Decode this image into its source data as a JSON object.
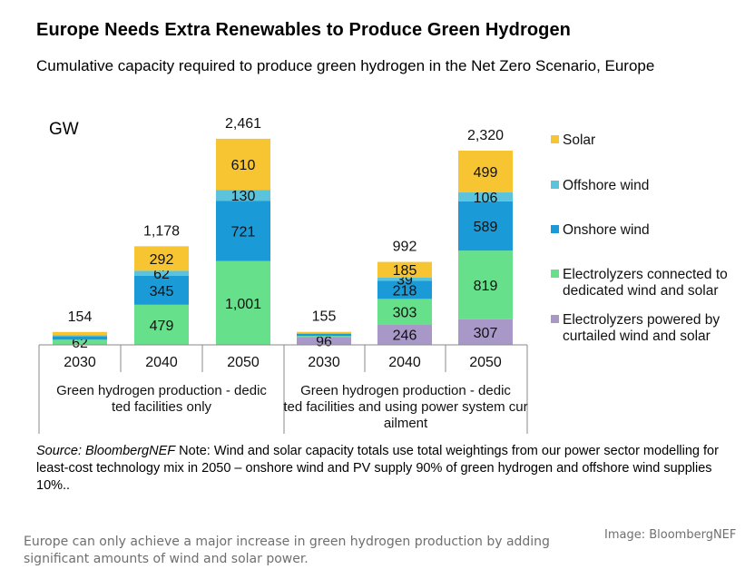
{
  "title": "Europe Needs Extra Renewables to Produce Green Hydrogen",
  "subtitle": "Cumulative capacity required to produce green hydrogen in the Net Zero Scenario, Europe",
  "unit": "GW",
  "note": {
    "source": "Source: BloombergNEF",
    "text": " Note: Wind and solar capacity totals use total weightings from our power sector modelling for least-cost technology mix in 2050 – onshore wind and PV supply 90% of green hydrogen and offshore wind supplies 10%.."
  },
  "caption": "Europe can only achieve a major increase in green hydrogen production by adding significant amounts of wind and solar power.",
  "credit": "Image: BloombergNEF",
  "chart_data": {
    "type": "bar",
    "stacked": true,
    "categories": [
      "2030",
      "2040",
      "2050",
      "2030",
      "2040",
      "2050"
    ],
    "groups": [
      {
        "label": "Green hydrogen production - dedicated facilities only",
        "categories": [
          0,
          1,
          2
        ]
      },
      {
        "label": "Green hydrogen production - dedicated facilities and using power system curtailment",
        "categories": [
          3,
          4,
          5
        ]
      }
    ],
    "series": [
      {
        "name": "Electrolyzers powered by curtailed wind and solar",
        "color": "#a898c8",
        "values": [
          0,
          0,
          0,
          96,
          246,
          307
        ],
        "labels": [
          "",
          "",
          "",
          "96",
          "246",
          "307"
        ]
      },
      {
        "name": "Electrolyzers connected to dedicated wind and solar",
        "color": "#66e08a",
        "values": [
          62,
          479,
          1001,
          10,
          303,
          819
        ],
        "labels": [
          "62",
          "479",
          "1,001",
          "",
          "303",
          "819"
        ]
      },
      {
        "name": "Onshore wind",
        "color": "#1a9ad6",
        "values": [
          40,
          345,
          721,
          25,
          218,
          589
        ],
        "labels": [
          "",
          "345",
          "721",
          "",
          "218",
          "589"
        ]
      },
      {
        "name": "Offshore wind",
        "color": "#5bc3dc",
        "values": [
          12,
          62,
          130,
          9,
          39,
          106
        ],
        "labels": [
          "",
          "62",
          "130",
          "",
          "39",
          "106"
        ]
      },
      {
        "name": "Solar",
        "color": "#f7c531",
        "values": [
          40,
          292,
          610,
          15,
          185,
          499
        ],
        "labels": [
          "",
          "292",
          "610",
          "",
          "185",
          "499"
        ]
      }
    ],
    "totals": [
      154,
      1178,
      2461,
      155,
      992,
      2320
    ],
    "total_labels": [
      "154",
      "1,178",
      "2,461",
      "155",
      "992",
      "2,320"
    ],
    "legend": {
      "placement": "right",
      "entries": [
        {
          "label": "Solar",
          "color": "#f7c531"
        },
        {
          "label": "Offshore wind",
          "color": "#5bc3dc"
        },
        {
          "label": "Onshore wind",
          "color": "#1a9ad6"
        },
        {
          "label": "Electrolyzers connected to dedicated wind and solar",
          "color": "#66e08a"
        },
        {
          "label": "Electrolyzers powered by curtailed wind and solar",
          "color": "#a898c8"
        }
      ]
    },
    "ylim": [
      0,
      2461
    ],
    "grid": false
  }
}
